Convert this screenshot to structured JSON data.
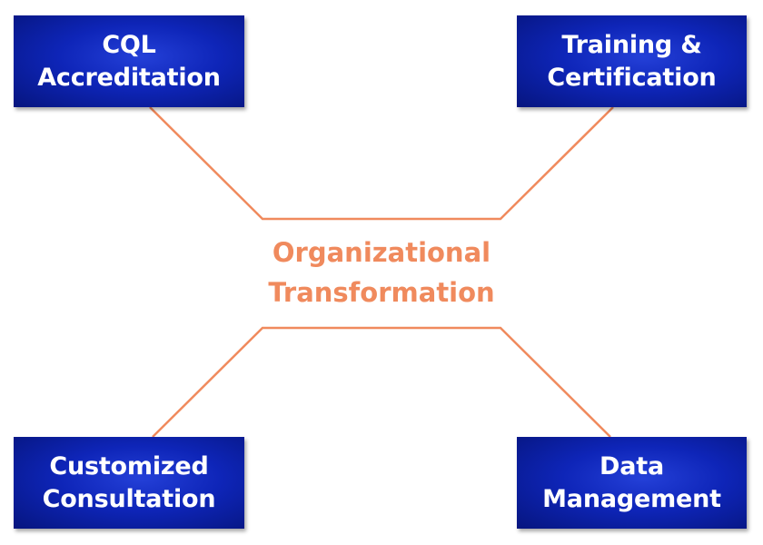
{
  "center": {
    "line1": "Organizational",
    "line2": "Transformation",
    "color": "#f08a5d"
  },
  "nodes": {
    "top_left": {
      "line1": "CQL",
      "line2": "Accreditation"
    },
    "top_right": {
      "line1": "Training &",
      "line2": "Certification"
    },
    "bottom_left": {
      "line1": "Customized",
      "line2": "Consultation"
    },
    "bottom_right": {
      "line1": "Data",
      "line2": "Management"
    }
  },
  "colors": {
    "box": "#0e25b8",
    "box_text": "#ffffff",
    "connector": "#f08a5d"
  }
}
